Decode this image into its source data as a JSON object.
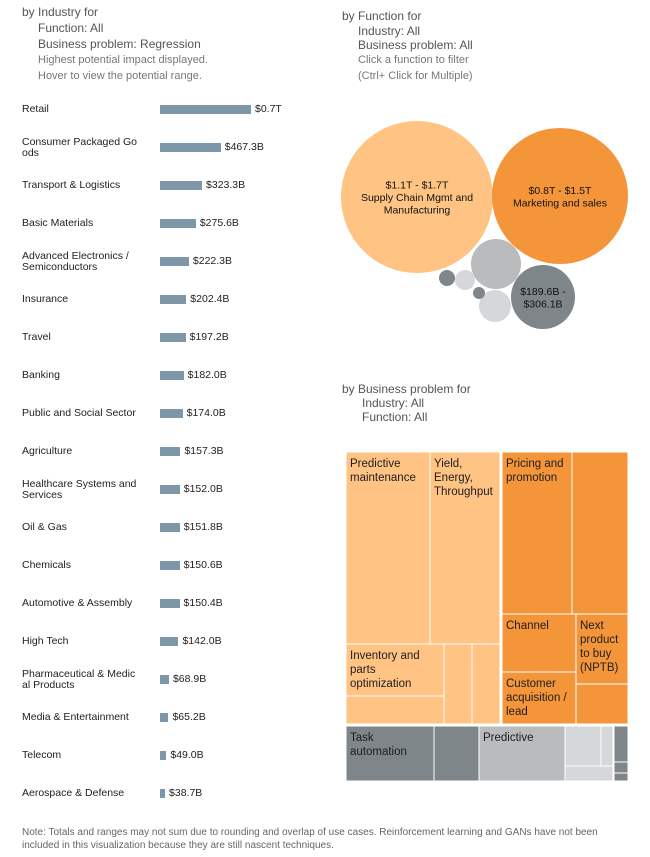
{
  "industry_panel": {
    "title": "by Industry for",
    "function_line": "Function: All",
    "problem_line": "Business problem: Regression",
    "hint1": "Highest potential impact displayed.",
    "hint2": "Hover to view the potential range."
  },
  "function_panel": {
    "title": "by Function for",
    "industry_line": "Industry: All",
    "problem_line": "Business problem: All",
    "hint1": "Click a function to filter",
    "hint2": "(Ctrl+ Click for Multiple)"
  },
  "problem_panel": {
    "title": "by Business problem for",
    "industry_line": "Industry: All",
    "function_line": "Function: All"
  },
  "note": "Note: Totals and ranges may not sum due to rounding and overlap of use cases.  Reinforcement learning and GANs have not been included in this visualization because they are still nascent techniques.",
  "colors": {
    "bar": "#7e97a8",
    "light_orange": "#ffc384",
    "orange": "#f5953a",
    "dark_gray": "#7f868a",
    "mid_gray": "#b9bbbd",
    "light_gray": "#d6d7d8"
  },
  "chart_data": [
    {
      "type": "bar",
      "orientation": "horizontal",
      "title": "by Industry for",
      "unit": "USD billions",
      "categories": [
        {
          "label1": "Retail",
          "label2": "",
          "value": 700,
          "value_label": "$0.7T"
        },
        {
          "label1": "Consumer Packaged Go",
          "label2": "ods",
          "value": 467.3,
          "value_label": "$467.3B"
        },
        {
          "label1": "Transport & Logistics",
          "label2": "",
          "value": 323.3,
          "value_label": "$323.3B"
        },
        {
          "label1": "Basic Materials",
          "label2": "",
          "value": 275.6,
          "value_label": "$275.6B"
        },
        {
          "label1": "Advanced Electronics /",
          "label2": "Semiconductors",
          "value": 222.3,
          "value_label": "$222.3B"
        },
        {
          "label1": "Insurance",
          "label2": "",
          "value": 202.4,
          "value_label": "$202.4B"
        },
        {
          "label1": "Travel",
          "label2": "",
          "value": 197.2,
          "value_label": "$197.2B"
        },
        {
          "label1": "Banking",
          "label2": "",
          "value": 182.0,
          "value_label": "$182.0B"
        },
        {
          "label1": "Public and Social Sector",
          "label2": "",
          "value": 174.0,
          "value_label": "$174.0B"
        },
        {
          "label1": "Agriculture",
          "label2": "",
          "value": 157.3,
          "value_label": "$157.3B"
        },
        {
          "label1": "Healthcare Systems and",
          "label2": "Services",
          "value": 152.0,
          "value_label": "$152.0B"
        },
        {
          "label1": "Oil & Gas",
          "label2": "",
          "value": 151.8,
          "value_label": "$151.8B"
        },
        {
          "label1": "Chemicals",
          "label2": "",
          "value": 150.6,
          "value_label": "$150.6B"
        },
        {
          "label1": "Automotive & Assembly",
          "label2": "",
          "value": 150.4,
          "value_label": "$150.4B"
        },
        {
          "label1": "High Tech",
          "label2": "",
          "value": 142.0,
          "value_label": "$142.0B"
        },
        {
          "label1": "Pharmaceutical & Medic",
          "label2": "al Products",
          "value": 68.9,
          "value_label": "$68.9B"
        },
        {
          "label1": "Media & Entertainment",
          "label2": "",
          "value": 65.2,
          "value_label": "$65.2B"
        },
        {
          "label1": "Telecom",
          "label2": "",
          "value": 49.0,
          "value_label": "$49.0B"
        },
        {
          "label1": "Aerospace & Defense",
          "label2": "",
          "value": 38.7,
          "value_label": "$38.7B"
        }
      ]
    },
    {
      "type": "bubble",
      "title": "by Function for",
      "bubbles": [
        {
          "id": "supply-chain",
          "line1": "$1.1T - $1.7T",
          "line2": "Supply Chain Mgmt and",
          "line3": "Manufacturing",
          "color": "#ffc384"
        },
        {
          "id": "marketing",
          "line1": "$0.8T - $1.5T",
          "line2": "Marketing and sales",
          "line3": "",
          "color": "#f5953a"
        },
        {
          "id": "unlabeled-mid-gray",
          "line1": "",
          "line2": "",
          "line3": "",
          "color": "#b9bbbd"
        },
        {
          "id": "third-function",
          "line1": "$189.6B -",
          "line2": "$306.1B",
          "line3": "",
          "color": "#7f868a"
        },
        {
          "id": "small-light-a",
          "line1": "",
          "line2": "",
          "line3": "",
          "color": "#d6d7d8"
        },
        {
          "id": "small-light-b",
          "line1": "",
          "line2": "",
          "line3": "",
          "color": "#d6d7d8"
        },
        {
          "id": "small-dark-a",
          "line1": "",
          "line2": "",
          "line3": "",
          "color": "#7f868a"
        },
        {
          "id": "small-dark-b",
          "line1": "",
          "line2": "",
          "line3": "",
          "color": "#7f868a"
        }
      ]
    },
    {
      "type": "treemap",
      "title": "by Business problem for",
      "cells": [
        {
          "id": "predictive-maintenance",
          "lines": [
            "Predictive",
            "maintenance"
          ],
          "color": "#ffc384"
        },
        {
          "id": "yield-energy",
          "lines": [
            "Yield,",
            "Energy,",
            "Throughput"
          ],
          "color": "#ffc384"
        },
        {
          "id": "inventory-parts",
          "lines": [
            "Inventory and",
            "parts",
            "optimization"
          ],
          "color": "#ffc384"
        },
        {
          "id": "light-orange-small-a",
          "lines": [],
          "color": "#ffc384"
        },
        {
          "id": "light-orange-small-b",
          "lines": [],
          "color": "#ffc384"
        },
        {
          "id": "light-orange-small-c",
          "lines": [],
          "color": "#ffc384"
        },
        {
          "id": "pricing-promotion",
          "lines": [
            "Pricing and",
            "promotion"
          ],
          "color": "#f5953a"
        },
        {
          "id": "orange-unlabeled-a",
          "lines": [],
          "color": "#f5953a"
        },
        {
          "id": "channel",
          "lines": [
            "Channel"
          ],
          "color": "#f5953a"
        },
        {
          "id": "next-product",
          "lines": [
            "Next",
            "product",
            "to buy",
            "(NPTB)"
          ],
          "color": "#f5953a"
        },
        {
          "id": "customer-acquisition",
          "lines": [
            "Customer",
            "acquisition /",
            "lead"
          ],
          "color": "#f5953a"
        },
        {
          "id": "orange-unlabeled-b",
          "lines": [],
          "color": "#f5953a"
        },
        {
          "id": "task-automation",
          "lines": [
            "Task",
            "automation"
          ],
          "color": "#7f868a"
        },
        {
          "id": "dark-gray-unlabeled",
          "lines": [],
          "color": "#7f868a"
        },
        {
          "id": "predictive",
          "lines": [
            "Predictive"
          ],
          "color": "#b9bbbd"
        },
        {
          "id": "light-gray-a",
          "lines": [],
          "color": "#d6d7d8"
        },
        {
          "id": "light-gray-b",
          "lines": [],
          "color": "#d6d7d8"
        },
        {
          "id": "light-gray-c",
          "lines": [],
          "color": "#d6d7d8"
        },
        {
          "id": "dark-gray-strip-a",
          "lines": [],
          "color": "#7f868a"
        },
        {
          "id": "dark-gray-strip-b",
          "lines": [],
          "color": "#7f868a"
        },
        {
          "id": "dark-gray-strip-c",
          "lines": [],
          "color": "#7f868a"
        }
      ]
    }
  ]
}
